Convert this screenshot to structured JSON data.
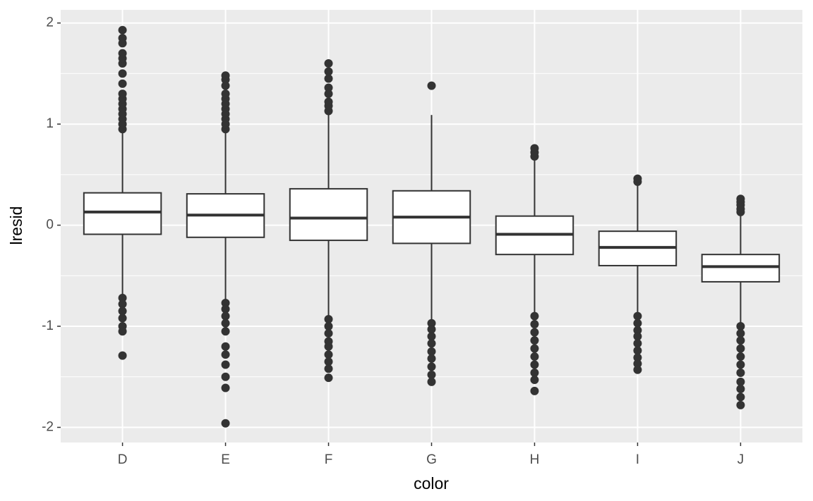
{
  "chart_data": {
    "type": "boxplot",
    "x_label": "color",
    "y_label": "lresid",
    "categories": [
      "D",
      "E",
      "F",
      "G",
      "H",
      "I",
      "J"
    ],
    "ylim": [
      -2.15,
      2.13
    ],
    "yticks": [
      -2,
      -1,
      0,
      1,
      2
    ],
    "grid": true,
    "box_fill": "#ffffff",
    "line_color": "#333333",
    "panel_color": "#ebebeb",
    "boxes": [
      {
        "whisker_low": -0.7,
        "q1": -0.09,
        "median": 0.13,
        "q3": 0.32,
        "whisker_high": 0.93,
        "outliers": [
          0.95,
          1.0,
          1.05,
          1.1,
          1.15,
          1.2,
          1.25,
          1.3,
          1.4,
          1.5,
          1.6,
          1.65,
          1.7,
          1.8,
          1.85,
          1.93,
          -0.72,
          -0.78,
          -0.85,
          -0.92,
          -1.0,
          -1.05,
          -1.29
        ]
      },
      {
        "whisker_low": -0.75,
        "q1": -0.12,
        "median": 0.1,
        "q3": 0.31,
        "whisker_high": 0.93,
        "outliers": [
          0.95,
          1.0,
          1.05,
          1.1,
          1.15,
          1.2,
          1.25,
          1.3,
          1.38,
          1.44,
          1.48,
          -0.77,
          -0.83,
          -0.9,
          -0.97,
          -1.05,
          -1.2,
          -1.28,
          -1.38,
          -1.5,
          -1.61,
          -1.96
        ]
      },
      {
        "whisker_low": -0.91,
        "q1": -0.15,
        "median": 0.07,
        "q3": 0.36,
        "whisker_high": 1.1,
        "outliers": [
          1.13,
          1.18,
          1.22,
          1.3,
          1.36,
          1.45,
          1.52,
          1.6,
          -0.93,
          -1.0,
          -1.07,
          -1.15,
          -1.2,
          -1.28,
          -1.35,
          -1.42,
          -1.51
        ]
      },
      {
        "whisker_low": -0.95,
        "q1": -0.18,
        "median": 0.08,
        "q3": 0.34,
        "whisker_high": 1.09,
        "outliers": [
          1.38,
          -0.97,
          -1.03,
          -1.1,
          -1.17,
          -1.25,
          -1.32,
          -1.4,
          -1.48,
          -1.55
        ]
      },
      {
        "whisker_low": -0.87,
        "q1": -0.29,
        "median": -0.09,
        "q3": 0.09,
        "whisker_high": 0.66,
        "outliers": [
          0.68,
          0.72,
          0.76,
          -0.9,
          -0.98,
          -1.06,
          -1.14,
          -1.22,
          -1.3,
          -1.38,
          -1.46,
          -1.53,
          -1.64
        ]
      },
      {
        "whisker_low": -0.88,
        "q1": -0.4,
        "median": -0.22,
        "q3": -0.06,
        "whisker_high": 0.42,
        "outliers": [
          0.43,
          0.46,
          -0.9,
          -0.97,
          -1.04,
          -1.1,
          -1.17,
          -1.24,
          -1.31,
          -1.37,
          -1.43
        ]
      },
      {
        "whisker_low": -0.98,
        "q1": -0.56,
        "median": -0.41,
        "q3": -0.29,
        "whisker_high": 0.1,
        "outliers": [
          0.13,
          0.16,
          0.2,
          0.23,
          0.26,
          -1.0,
          -1.07,
          -1.14,
          -1.22,
          -1.3,
          -1.38,
          -1.46,
          -1.55,
          -1.62,
          -1.7,
          -1.78
        ]
      }
    ]
  }
}
